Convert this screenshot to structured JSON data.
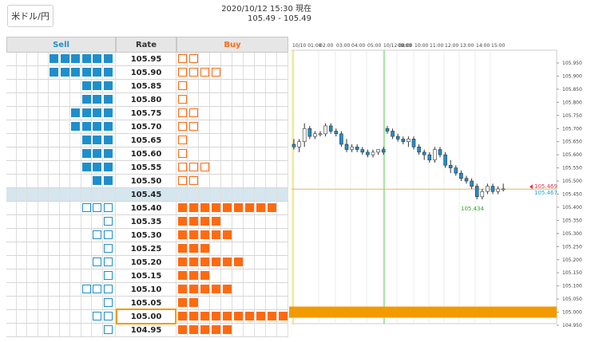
{
  "pair_button": "米ドル/円",
  "timestamp_line": "2020/10/12 15:30 現在",
  "price_range_line": "105.49 - 105.49",
  "book": {
    "headers": {
      "sell": "Sell",
      "rate": "Rate",
      "buy": "Buy"
    },
    "current_rate": "105.45",
    "highlighted_rate": "105.00",
    "rows": [
      {
        "rate": "105.95",
        "sell_filled": 6,
        "sell_outline": 0,
        "buy_filled": 0,
        "buy_outline": 2
      },
      {
        "rate": "105.90",
        "sell_filled": 6,
        "sell_outline": 0,
        "buy_filled": 0,
        "buy_outline": 4
      },
      {
        "rate": "105.85",
        "sell_filled": 3,
        "sell_outline": 0,
        "buy_filled": 0,
        "buy_outline": 1
      },
      {
        "rate": "105.80",
        "sell_filled": 3,
        "sell_outline": 0,
        "buy_filled": 0,
        "buy_outline": 1
      },
      {
        "rate": "105.75",
        "sell_filled": 4,
        "sell_outline": 0,
        "buy_filled": 0,
        "buy_outline": 2
      },
      {
        "rate": "105.70",
        "sell_filled": 4,
        "sell_outline": 0,
        "buy_filled": 0,
        "buy_outline": 2
      },
      {
        "rate": "105.65",
        "sell_filled": 3,
        "sell_outline": 0,
        "buy_filled": 0,
        "buy_outline": 1
      },
      {
        "rate": "105.60",
        "sell_filled": 3,
        "sell_outline": 0,
        "buy_filled": 0,
        "buy_outline": 1
      },
      {
        "rate": "105.55",
        "sell_filled": 3,
        "sell_outline": 0,
        "buy_filled": 0,
        "buy_outline": 3
      },
      {
        "rate": "105.50",
        "sell_filled": 2,
        "sell_outline": 0,
        "buy_filled": 0,
        "buy_outline": 2
      },
      {
        "rate": "105.45",
        "sell_filled": 0,
        "sell_outline": 0,
        "buy_filled": 0,
        "buy_outline": 0
      },
      {
        "rate": "105.40",
        "sell_filled": 0,
        "sell_outline": 3,
        "buy_filled": 9,
        "buy_outline": 0
      },
      {
        "rate": "105.35",
        "sell_filled": 0,
        "sell_outline": 1,
        "buy_filled": 4,
        "buy_outline": 0
      },
      {
        "rate": "105.30",
        "sell_filled": 0,
        "sell_outline": 2,
        "buy_filled": 5,
        "buy_outline": 0
      },
      {
        "rate": "105.25",
        "sell_filled": 0,
        "sell_outline": 1,
        "buy_filled": 3,
        "buy_outline": 0
      },
      {
        "rate": "105.20",
        "sell_filled": 0,
        "sell_outline": 2,
        "buy_filled": 6,
        "buy_outline": 0
      },
      {
        "rate": "105.15",
        "sell_filled": 0,
        "sell_outline": 1,
        "buy_filled": 3,
        "buy_outline": 0
      },
      {
        "rate": "105.10",
        "sell_filled": 0,
        "sell_outline": 3,
        "buy_filled": 5,
        "buy_outline": 0
      },
      {
        "rate": "105.05",
        "sell_filled": 0,
        "sell_outline": 1,
        "buy_filled": 2,
        "buy_outline": 0
      },
      {
        "rate": "105.00",
        "sell_filled": 0,
        "sell_outline": 2,
        "buy_filled": 10,
        "buy_outline": 0
      },
      {
        "rate": "104.95",
        "sell_filled": 0,
        "sell_outline": 1,
        "buy_filled": 5,
        "buy_outline": 0
      }
    ]
  },
  "colors": {
    "sell": "#1f8fcc",
    "buy": "#ff6a10",
    "highlight": "#f39a00",
    "current_row": "#d6e6ee",
    "bid_label": "#e8334a",
    "ask_label": "#1fa6c9",
    "low_label": "#2aa52a"
  },
  "chart_data": {
    "type": "candlestick",
    "x_labels": [
      "10/10 01:00",
      "02:00",
      "03:00",
      "04:00",
      "05:00",
      "10/12 08:00",
      "09:00",
      "10:00",
      "11:00",
      "12:00",
      "13:00",
      "14:00",
      "15:00"
    ],
    "y_ticks": [
      "105.950",
      "105.900",
      "105.850",
      "105.800",
      "105.750",
      "105.700",
      "105.650",
      "105.600",
      "105.550",
      "105.500",
      "105.450",
      "105.400",
      "105.350",
      "105.300",
      "105.250",
      "105.200",
      "105.150",
      "105.100",
      "105.050",
      "105.000",
      "104.950"
    ],
    "ylim": [
      104.95,
      105.95
    ],
    "bid_label": "105.469",
    "ask_label": "105.467",
    "low_label": "105.434",
    "highlight_level": 105.0,
    "candles": [
      [
        105.64,
        105.66,
        105.62,
        105.63
      ],
      [
        105.63,
        105.66,
        105.61,
        105.65
      ],
      [
        105.65,
        105.72,
        105.63,
        105.7
      ],
      [
        105.7,
        105.71,
        105.66,
        105.67
      ],
      [
        105.67,
        105.69,
        105.66,
        105.68
      ],
      [
        105.68,
        105.69,
        105.67,
        105.68
      ],
      [
        105.68,
        105.72,
        105.67,
        105.71
      ],
      [
        105.71,
        105.72,
        105.68,
        105.69
      ],
      [
        105.69,
        105.7,
        105.67,
        105.68
      ],
      [
        105.68,
        105.69,
        105.63,
        105.64
      ],
      [
        105.64,
        105.66,
        105.61,
        105.62
      ],
      [
        105.62,
        105.64,
        105.61,
        105.63
      ],
      [
        105.63,
        105.64,
        105.61,
        105.62
      ],
      [
        105.62,
        105.63,
        105.6,
        105.61
      ],
      [
        105.61,
        105.62,
        105.59,
        105.6
      ],
      [
        105.6,
        105.62,
        105.59,
        105.61
      ],
      [
        105.61,
        105.62,
        105.6,
        105.62
      ],
      [
        105.62,
        105.63,
        105.6,
        105.61
      ],
      [
        105.7,
        105.71,
        105.68,
        105.69
      ],
      [
        105.69,
        105.7,
        105.66,
        105.67
      ],
      [
        105.67,
        105.68,
        105.65,
        105.66
      ],
      [
        105.66,
        105.67,
        105.64,
        105.65
      ],
      [
        105.65,
        105.67,
        105.63,
        105.66
      ],
      [
        105.66,
        105.67,
        105.62,
        105.63
      ],
      [
        105.63,
        105.64,
        105.6,
        105.61
      ],
      [
        105.61,
        105.62,
        105.58,
        105.6
      ],
      [
        105.6,
        105.61,
        105.57,
        105.58
      ],
      [
        105.58,
        105.63,
        105.57,
        105.62
      ],
      [
        105.62,
        105.63,
        105.59,
        105.6
      ],
      [
        105.6,
        105.61,
        105.55,
        105.56
      ],
      [
        105.56,
        105.58,
        105.53,
        105.55
      ],
      [
        105.55,
        105.56,
        105.52,
        105.53
      ],
      [
        105.53,
        105.54,
        105.5,
        105.51
      ],
      [
        105.51,
        105.52,
        105.49,
        105.5
      ],
      [
        105.5,
        105.51,
        105.47,
        105.48
      ],
      [
        105.48,
        105.49,
        105.43,
        105.44
      ],
      [
        105.44,
        105.47,
        105.43,
        105.46
      ],
      [
        105.46,
        105.49,
        105.45,
        105.48
      ],
      [
        105.48,
        105.49,
        105.45,
        105.46
      ],
      [
        105.46,
        105.48,
        105.45,
        105.47
      ],
      [
        105.47,
        105.49,
        105.46,
        105.47
      ]
    ]
  }
}
